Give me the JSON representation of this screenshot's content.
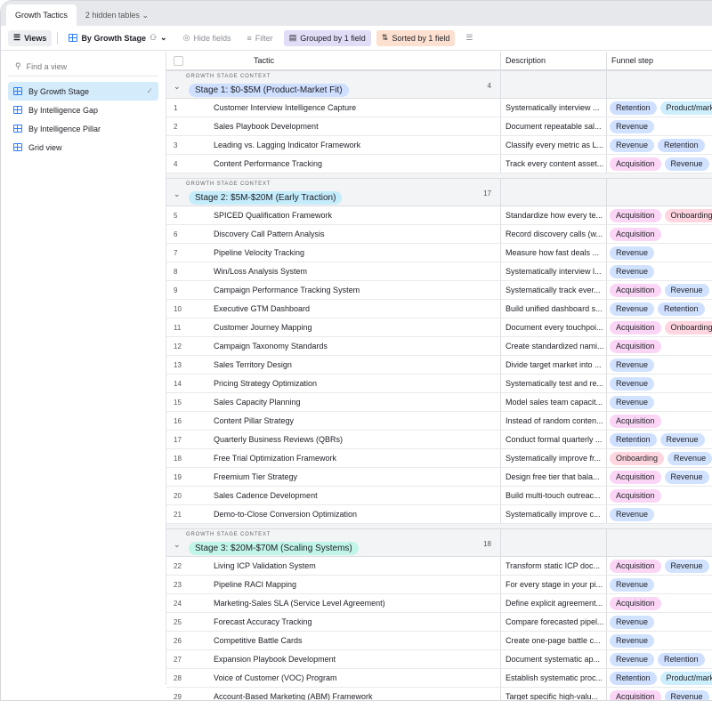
{
  "tabs": {
    "active": "Growth Tactics",
    "hidden": "2 hidden tables"
  },
  "toolbar": {
    "views": "Views",
    "view_name": "By Growth Stage",
    "hide_fields": "Hide fields",
    "filter": "Filter",
    "grouped": "Grouped by 1 field",
    "sorted": "Sorted by 1 field"
  },
  "sidebar": {
    "find_placeholder": "Find a view",
    "items": [
      {
        "label": "By Growth Stage",
        "selected": true
      },
      {
        "label": "By Intelligence Gap"
      },
      {
        "label": "By Intelligence Pillar"
      },
      {
        "label": "Grid view"
      }
    ]
  },
  "columns": {
    "tactic": "Tactic",
    "description": "Description",
    "funnel": "Funnel step"
  },
  "tag_colors": {
    "Retention": "#cfdfff",
    "Revenue": "#d1e2ff",
    "Acquisition": "#fbd5f5",
    "Onboarding": "#ffd6df",
    "Product/market": "#cdeefc"
  },
  "groups": [
    {
      "context": "GROWTH STAGE CONTEXT",
      "label": "Stage 1: $0-$5M (Product-Market Fit)",
      "color": "#cfdfff",
      "count": "4",
      "rows": [
        [
          "1",
          "Customer Interview Intelligence Capture",
          "Systematically interview ...",
          [
            "Retention",
            "Product/market"
          ]
        ],
        [
          "2",
          "Sales Playbook Development",
          "Document repeatable sal...",
          [
            "Revenue"
          ]
        ],
        [
          "3",
          "Leading vs. Lagging Indicator Framework",
          "Classify every metric as L...",
          [
            "Revenue",
            "Retention"
          ]
        ],
        [
          "4",
          "Content Performance Tracking",
          "Track every content asset...",
          [
            "Acquisition",
            "Revenue"
          ]
        ]
      ]
    },
    {
      "context": "GROWTH STAGE CONTEXT",
      "label": "Stage 2: $5M-$20M (Early Traction)",
      "color": "#c4ecfb",
      "count": "17",
      "rows": [
        [
          "5",
          "SPICED Qualification Framework",
          "Standardize how every te...",
          [
            "Acquisition",
            "Onboarding"
          ]
        ],
        [
          "6",
          "Discovery Call Pattern Analysis",
          "Record discovery calls (w...",
          [
            "Acquisition"
          ]
        ],
        [
          "7",
          "Pipeline Velocity Tracking",
          "Measure how fast deals ...",
          [
            "Revenue"
          ]
        ],
        [
          "8",
          "Win/Loss Analysis System",
          "Systematically interview l...",
          [
            "Revenue"
          ]
        ],
        [
          "9",
          "Campaign Performance Tracking System",
          "Systematically track ever...",
          [
            "Acquisition",
            "Revenue"
          ]
        ],
        [
          "10",
          "Executive GTM Dashboard",
          "Build unified dashboard s...",
          [
            "Revenue",
            "Retention"
          ]
        ],
        [
          "11",
          "Customer Journey Mapping",
          "Document every touchpoi...",
          [
            "Acquisition",
            "Onboarding"
          ]
        ],
        [
          "12",
          "Campaign Taxonomy Standards",
          "Create standardized nami...",
          [
            "Acquisition"
          ]
        ],
        [
          "13",
          "Sales Territory Design",
          "Divide target market into ...",
          [
            "Revenue"
          ]
        ],
        [
          "14",
          "Pricing Strategy Optimization",
          "Systematically test and re...",
          [
            "Revenue"
          ]
        ],
        [
          "15",
          "Sales Capacity Planning",
          "Model sales team capacit...",
          [
            "Revenue"
          ]
        ],
        [
          "16",
          "Content Pillar Strategy",
          "Instead of random conten...",
          [
            "Acquisition"
          ]
        ],
        [
          "17",
          "Quarterly Business Reviews (QBRs)",
          "Conduct formal quarterly ...",
          [
            "Retention",
            "Revenue"
          ]
        ],
        [
          "18",
          "Free Trial Optimization Framework",
          "Systematically improve fr...",
          [
            "Onboarding",
            "Revenue"
          ]
        ],
        [
          "19",
          "Freemium Tier Strategy",
          "Design free tier that bala...",
          [
            "Acquisition",
            "Revenue"
          ]
        ],
        [
          "20",
          "Sales Cadence Development",
          "Build multi-touch outreac...",
          [
            "Acquisition"
          ]
        ],
        [
          "21",
          "Demo-to-Close Conversion Optimization",
          "Systematically improve c...",
          [
            "Revenue"
          ]
        ]
      ]
    },
    {
      "context": "GROWTH STAGE CONTEXT",
      "label": "Stage 3: $20M-$70M (Scaling Systems)",
      "color": "#c2f5e9",
      "count": "18",
      "rows": [
        [
          "22",
          "Living ICP Validation System",
          "Transform static ICP doc...",
          [
            "Acquisition",
            "Revenue"
          ]
        ],
        [
          "23",
          "Pipeline RACI Mapping",
          "For every stage in your pi...",
          [
            "Revenue"
          ]
        ],
        [
          "24",
          "Marketing-Sales SLA (Service Level Agreement)",
          "Define explicit agreement...",
          [
            "Acquisition"
          ]
        ],
        [
          "25",
          "Forecast Accuracy Tracking",
          "Compare forecasted pipel...",
          [
            "Revenue"
          ]
        ],
        [
          "26",
          "Competitive Battle Cards",
          "Create one-page battle c...",
          [
            "Revenue"
          ]
        ],
        [
          "27",
          "Expansion Playbook Development",
          "Document systematic ap...",
          [
            "Revenue",
            "Retention"
          ]
        ],
        [
          "28",
          "Voice of Customer (VOC) Program",
          "Establish systematic proc...",
          [
            "Retention",
            "Product/market"
          ]
        ],
        [
          "29",
          "Account-Based Marketing (ABM) Framework",
          "Target specific high-valu...",
          [
            "Acquisition",
            "Revenue"
          ]
        ]
      ]
    }
  ]
}
